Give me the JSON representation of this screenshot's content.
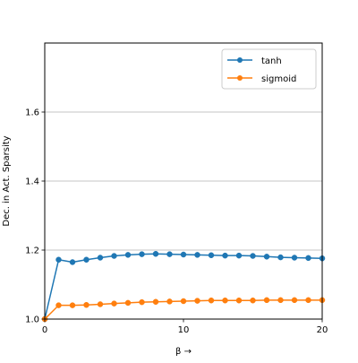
{
  "chart_data": {
    "type": "line",
    "title": "",
    "xlabel": "β →",
    "ylabel": "Dec. in Act. Sparsity",
    "xlim": [
      0,
      20
    ],
    "ylim": [
      1.0,
      1.8
    ],
    "xticks": [
      0,
      10,
      20
    ],
    "xtick_labels": [
      "0",
      "10",
      "20"
    ],
    "yticks": [
      1.0,
      1.2,
      1.4,
      1.6
    ],
    "ytick_labels": [
      "1.0",
      "1.2",
      "1.4",
      "1.6"
    ],
    "grid": "horizontal",
    "legend_position": "top-right",
    "x": [
      0,
      1,
      2,
      3,
      4,
      5,
      6,
      7,
      8,
      9,
      10,
      11,
      12,
      13,
      14,
      15,
      16,
      17,
      18,
      19,
      20
    ],
    "series": [
      {
        "name": "tanh",
        "color": "#1f77b4",
        "marker": "circle",
        "values": [
          1.0,
          1.172,
          1.165,
          1.172,
          1.178,
          1.183,
          1.186,
          1.188,
          1.189,
          1.188,
          1.187,
          1.186,
          1.185,
          1.184,
          1.184,
          1.183,
          1.181,
          1.179,
          1.178,
          1.177,
          1.176
        ]
      },
      {
        "name": "sigmoid",
        "color": "#ff7f0e",
        "marker": "circle",
        "values": [
          1.0,
          1.04,
          1.04,
          1.041,
          1.043,
          1.045,
          1.047,
          1.049,
          1.05,
          1.051,
          1.052,
          1.053,
          1.054,
          1.054,
          1.054,
          1.054,
          1.055,
          1.055,
          1.055,
          1.055,
          1.055
        ]
      }
    ]
  }
}
